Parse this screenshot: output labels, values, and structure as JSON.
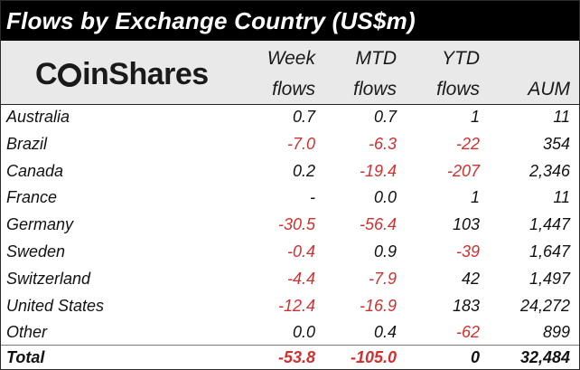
{
  "title": "Flows by Exchange Country (US$m)",
  "logo_text": {
    "pre": "C",
    "post": "inShares"
  },
  "columns": {
    "week": {
      "line1": "Week",
      "line2": "flows"
    },
    "mtd": {
      "line1": "MTD",
      "line2": "flows"
    },
    "ytd": {
      "line1": "YTD",
      "line2": "flows"
    },
    "aum": {
      "line2": "AUM"
    }
  },
  "colors": {
    "negative": "#d32f2f",
    "header_bg": "#000000",
    "band_bg": "#e9e9e9"
  },
  "chart_data": {
    "type": "table",
    "title": "Flows by Exchange Country (US$m)",
    "columns": [
      "Week flows",
      "MTD flows",
      "YTD flows",
      "AUM"
    ],
    "rows": [
      {
        "country": "Australia",
        "week": "0.7",
        "mtd": "0.7",
        "ytd": "1",
        "aum": "11"
      },
      {
        "country": "Brazil",
        "week": "-7.0",
        "mtd": "-6.3",
        "ytd": "-22",
        "aum": "354"
      },
      {
        "country": "Canada",
        "week": "0.2",
        "mtd": "-19.4",
        "ytd": "-207",
        "aum": "2,346"
      },
      {
        "country": "France",
        "week": "-",
        "mtd": "0.0",
        "ytd": "1",
        "aum": "11"
      },
      {
        "country": "Germany",
        "week": "-30.5",
        "mtd": "-56.4",
        "ytd": "103",
        "aum": "1,447"
      },
      {
        "country": "Sweden",
        "week": "-0.4",
        "mtd": "0.9",
        "ytd": "-39",
        "aum": "1,647"
      },
      {
        "country": "Switzerland",
        "week": "-4.4",
        "mtd": "-7.9",
        "ytd": "42",
        "aum": "1,497"
      },
      {
        "country": "United States",
        "week": "-12.4",
        "mtd": "-16.9",
        "ytd": "183",
        "aum": "24,272"
      },
      {
        "country": "Other",
        "week": "0.0",
        "mtd": "0.4",
        "ytd": "-62",
        "aum": "899"
      }
    ],
    "total": {
      "label": "Total",
      "week": "-53.8",
      "mtd": "-105.0",
      "ytd": "0",
      "aum": "32,484"
    }
  }
}
